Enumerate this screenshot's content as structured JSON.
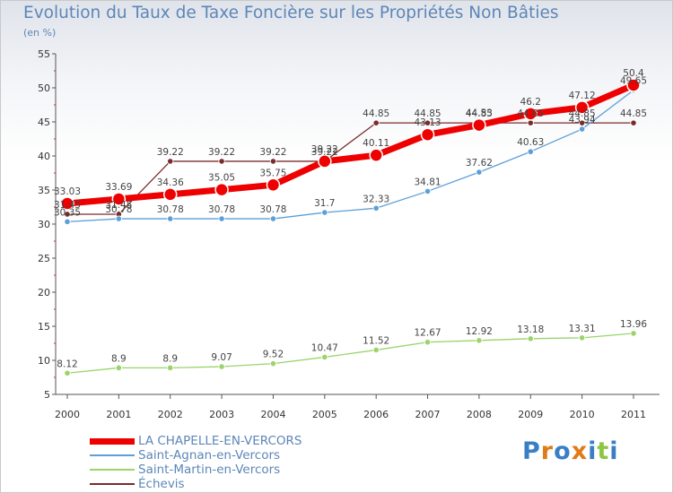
{
  "title": "Evolution du Taux de Taxe Foncière sur les Propriétés Non Bâties",
  "subtitle": "(en %)",
  "logo_text": "Proxiti",
  "chart_data": {
    "type": "line",
    "title": "Evolution du Taux de Taxe Foncière sur les Propriétés Non Bâties",
    "ylabel": "(en %)",
    "xlabel": "",
    "categories": [
      "2000",
      "2001",
      "2002",
      "2003",
      "2004",
      "2005",
      "2006",
      "2007",
      "2008",
      "2009",
      "2010",
      "2011"
    ],
    "ylim": [
      5,
      55
    ],
    "yticks": [
      5,
      10,
      15,
      20,
      25,
      30,
      35,
      40,
      45,
      50,
      55
    ],
    "grid": false,
    "legend_position": "bottom-left",
    "series": [
      {
        "name": "LA CHAPELLE-EN-VERCORS",
        "color": "#ee0000",
        "values": [
          33.03,
          33.69,
          34.36,
          35.05,
          35.75,
          39.22,
          40.11,
          43.13,
          44.53,
          46.2,
          47.12,
          50.4
        ],
        "labels": [
          "33.03",
          "33.69",
          "34.36",
          "35.05",
          "35.75",
          "39.22",
          "40.11",
          "43.13",
          "44.53",
          "46.2",
          "47.12",
          "50.4"
        ]
      },
      {
        "name": "Saint-Agnan-en-Vercors",
        "color": "#5d9fd6",
        "values": [
          30.35,
          30.78,
          30.78,
          30.78,
          30.78,
          31.7,
          32.33,
          34.81,
          37.62,
          40.63,
          43.94,
          49.65
        ],
        "labels": [
          "30.35",
          "30.78",
          "30.78",
          "30.78",
          "30.78",
          "31.7",
          "32.33",
          "34.81",
          "37.62",
          "40.63",
          "43.94",
          "49.65"
        ]
      },
      {
        "name": "Saint-Martin-en-Vercors",
        "color": "#9ad46a",
        "values": [
          8.12,
          8.9,
          8.9,
          9.07,
          9.52,
          10.47,
          11.52,
          12.67,
          12.92,
          13.18,
          13.31,
          13.96
        ],
        "labels": [
          "8.12",
          "8.9",
          "8.9",
          "9.07",
          "9.52",
          "10.47",
          "11.52",
          "12.67",
          "12.92",
          "13.18",
          "13.31",
          "13.96"
        ]
      },
      {
        "name": "Échevis",
        "color": "#7a2c2c",
        "values": [
          31.45,
          31.45,
          39.22,
          39.22,
          39.22,
          39.22,
          44.85,
          44.85,
          44.85,
          44.85,
          44.85,
          44.85
        ],
        "labels": [
          "31.45",
          "31.45",
          "39.22",
          "39.22",
          "39.22",
          "39.22",
          "44.85",
          "44.85",
          "44.85",
          "44.85",
          "44.85",
          "44.85"
        ]
      }
    ]
  }
}
